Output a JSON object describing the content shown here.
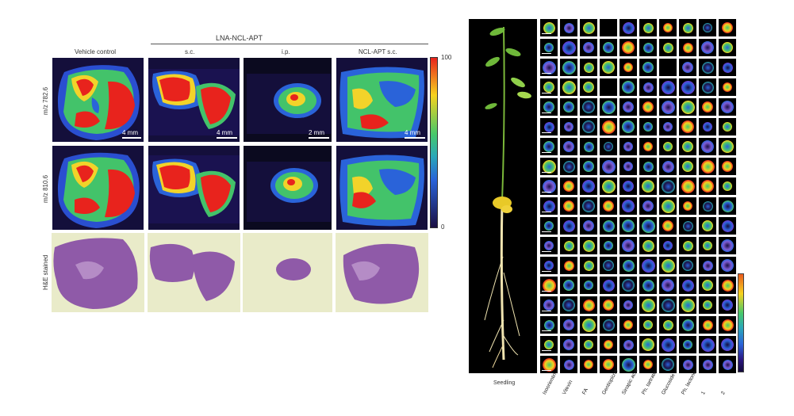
{
  "left_figure": {
    "group_title": "LNA-NCL-APT",
    "columns": [
      "Vehicle control",
      "s.c.",
      "i.p.",
      "NCL-APT s.c."
    ],
    "rows": [
      "m/z 782.6",
      "m/z 810.6",
      "H&E stained"
    ],
    "scale_labels": [
      "4 mm",
      "4 mm",
      "2 mm",
      "4 mm"
    ],
    "colorbar_max": "100",
    "colorbar_min": "0"
  },
  "right_figure": {
    "seedling_label": "Seedling",
    "column_labels": [
      "Isoorientin",
      "Vitexin",
      "FA",
      "Gentiopicrin",
      "Sinapic acid",
      "Ph. tartrate",
      "Glucoside",
      "Ph. lactone",
      "1",
      "2"
    ],
    "rows": 18
  },
  "colors": {
    "hot": "#e8231d",
    "warm": "#f6d21e",
    "mid": "#47c86a",
    "cool": "#2a63d9",
    "dark": "#1b0f42",
    "he": "#8f5aa8"
  }
}
